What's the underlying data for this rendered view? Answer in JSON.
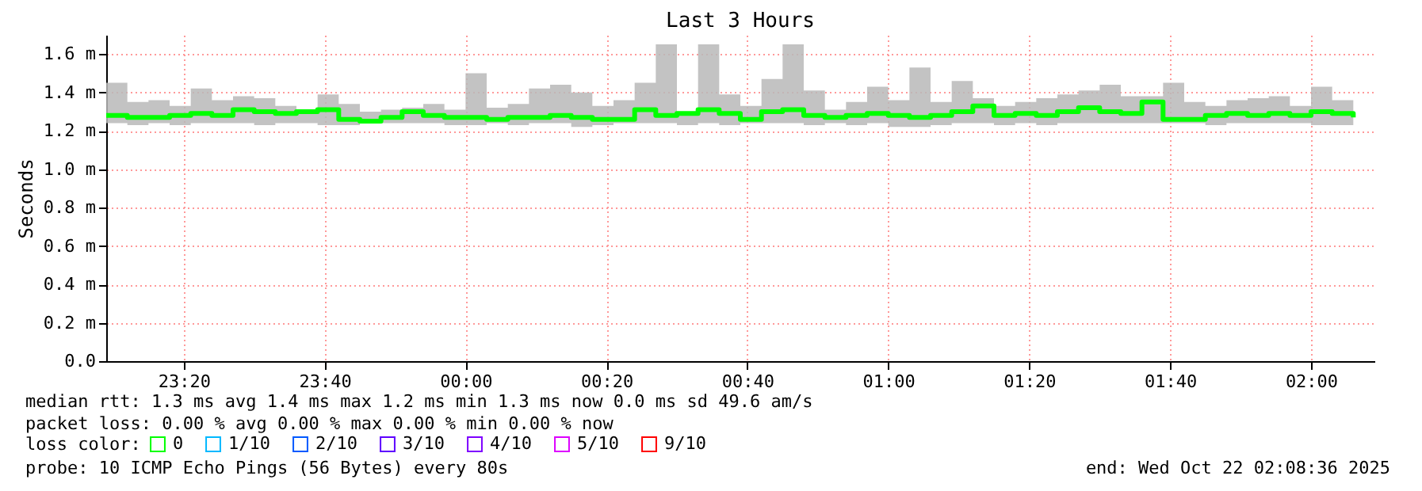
{
  "chart_data": {
    "type": "step",
    "title": "Last 3 Hours",
    "ylabel": "Seconds",
    "legend_title": "loss color:",
    "legend": "bottom",
    "grid": true,
    "xlim": [
      "2025-10-21T23:09",
      "2025-10-22T02:09"
    ],
    "xticks": [
      {
        "value": "2025-10-21T23:20",
        "label": "23:20"
      },
      {
        "value": "2025-10-21T23:40",
        "label": "23:40"
      },
      {
        "value": "2025-10-22T00:00",
        "label": "00:00"
      },
      {
        "value": "2025-10-22T00:20",
        "label": "00:20"
      },
      {
        "value": "2025-10-22T00:40",
        "label": "00:40"
      },
      {
        "value": "2025-10-22T01:00",
        "label": "01:00"
      },
      {
        "value": "2025-10-22T01:20",
        "label": "01:20"
      },
      {
        "value": "2025-10-22T01:40",
        "label": "01:40"
      },
      {
        "value": "2025-10-22T02:00",
        "label": "02:00"
      }
    ],
    "ylim": [
      0,
      1.7
    ],
    "yticks": [
      {
        "value": 0,
        "label": "0.0"
      },
      {
        "value": 0.2,
        "label": "0.2 m"
      },
      {
        "value": 0.4,
        "label": "0.4 m"
      },
      {
        "value": 0.6,
        "label": "0.6 m"
      },
      {
        "value": 0.8,
        "label": "0.8 m"
      },
      {
        "value": 1.0,
        "label": "1.0 m"
      },
      {
        "value": 1.2,
        "label": "1.2 m"
      },
      {
        "value": 1.4,
        "label": "1.4 m"
      },
      {
        "value": 1.6,
        "label": "1.6 m"
      }
    ],
    "x": [
      "2025-10-21T23:09",
      "2025-10-21T23:12",
      "2025-10-21T23:15",
      "2025-10-21T23:18",
      "2025-10-21T23:21",
      "2025-10-21T23:24",
      "2025-10-21T23:27",
      "2025-10-21T23:30",
      "2025-10-21T23:33",
      "2025-10-21T23:36",
      "2025-10-21T23:39",
      "2025-10-21T23:42",
      "2025-10-21T23:45",
      "2025-10-21T23:48",
      "2025-10-21T23:51",
      "2025-10-21T23:54",
      "2025-10-21T23:57",
      "2025-10-22T00:00",
      "2025-10-22T00:03",
      "2025-10-22T00:06",
      "2025-10-22T00:09",
      "2025-10-22T00:12",
      "2025-10-22T00:15",
      "2025-10-22T00:18",
      "2025-10-22T00:21",
      "2025-10-22T00:24",
      "2025-10-22T00:27",
      "2025-10-22T00:30",
      "2025-10-22T00:33",
      "2025-10-22T00:36",
      "2025-10-22T00:39",
      "2025-10-22T00:42",
      "2025-10-22T00:45",
      "2025-10-22T00:48",
      "2025-10-22T00:51",
      "2025-10-22T00:54",
      "2025-10-22T00:57",
      "2025-10-22T01:00",
      "2025-10-22T01:03",
      "2025-10-22T01:06",
      "2025-10-22T01:09",
      "2025-10-22T01:12",
      "2025-10-22T01:15",
      "2025-10-22T01:18",
      "2025-10-22T01:21",
      "2025-10-22T01:24",
      "2025-10-22T01:27",
      "2025-10-22T01:30",
      "2025-10-22T01:33",
      "2025-10-22T01:36",
      "2025-10-22T01:39",
      "2025-10-22T01:42",
      "2025-10-22T01:45",
      "2025-10-22T01:48",
      "2025-10-22T01:51",
      "2025-10-22T01:54",
      "2025-10-22T01:57",
      "2025-10-22T02:00",
      "2025-10-22T02:03",
      "2025-10-22T02:06"
    ],
    "series": [
      {
        "name": "0",
        "color": "#00ff00",
        "values": [
          1.28,
          1.27,
          1.27,
          1.28,
          1.29,
          1.28,
          1.31,
          1.3,
          1.29,
          1.3,
          1.31,
          1.26,
          1.25,
          1.27,
          1.3,
          1.28,
          1.27,
          1.27,
          1.26,
          1.27,
          1.27,
          1.28,
          1.27,
          1.26,
          1.26,
          1.31,
          1.28,
          1.29,
          1.31,
          1.29,
          1.26,
          1.3,
          1.31,
          1.28,
          1.27,
          1.28,
          1.29,
          1.28,
          1.27,
          1.28,
          1.3,
          1.33,
          1.28,
          1.29,
          1.28,
          1.3,
          1.32,
          1.3,
          1.29,
          1.35,
          1.26,
          1.26,
          1.28,
          1.29,
          1.28,
          1.29,
          1.28,
          1.3,
          1.29,
          1.27
        ],
        "lower": [
          1.24,
          1.23,
          1.24,
          1.23,
          1.24,
          1.24,
          1.24,
          1.23,
          1.24,
          1.24,
          1.23,
          1.23,
          1.24,
          1.24,
          1.24,
          1.24,
          1.23,
          1.23,
          1.24,
          1.23,
          1.24,
          1.24,
          1.22,
          1.23,
          1.24,
          1.24,
          1.24,
          1.23,
          1.24,
          1.23,
          1.24,
          1.24,
          1.24,
          1.23,
          1.24,
          1.23,
          1.24,
          1.22,
          1.22,
          1.23,
          1.24,
          1.24,
          1.23,
          1.24,
          1.23,
          1.24,
          1.24,
          1.24,
          1.24,
          1.24,
          1.24,
          1.24,
          1.23,
          1.24,
          1.24,
          1.24,
          1.24,
          1.23,
          1.23,
          1.24
        ],
        "upper": [
          1.45,
          1.35,
          1.36,
          1.33,
          1.42,
          1.36,
          1.38,
          1.37,
          1.33,
          1.31,
          1.39,
          1.34,
          1.3,
          1.31,
          1.32,
          1.34,
          1.31,
          1.5,
          1.32,
          1.34,
          1.42,
          1.44,
          1.4,
          1.33,
          1.36,
          1.45,
          1.65,
          1.3,
          1.65,
          1.39,
          1.33,
          1.47,
          1.65,
          1.41,
          1.31,
          1.35,
          1.43,
          1.36,
          1.53,
          1.35,
          1.46,
          1.37,
          1.33,
          1.35,
          1.37,
          1.39,
          1.41,
          1.44,
          1.38,
          1.38,
          1.45,
          1.35,
          1.33,
          1.36,
          1.37,
          1.38,
          1.33,
          1.43,
          1.36,
          1.31
        ]
      },
      {
        "name": "1/10",
        "color": "#00b8ff",
        "values": [
          null,
          null,
          null,
          null,
          null,
          null,
          null,
          null,
          null,
          null,
          null,
          null,
          null,
          null,
          null,
          null,
          null,
          null,
          null,
          null,
          null,
          null,
          null,
          null,
          null,
          null,
          null,
          null,
          null,
          null,
          null,
          null,
          null,
          null,
          null,
          null,
          null,
          null,
          null,
          null,
          null,
          null,
          null,
          null,
          null,
          null,
          null,
          null,
          null,
          null,
          null,
          null,
          null,
          null,
          null,
          null,
          null,
          null,
          null,
          null
        ]
      },
      {
        "name": "2/10",
        "color": "#0059ff",
        "values": [
          null,
          null,
          null,
          null,
          null,
          null,
          null,
          null,
          null,
          null,
          null,
          null,
          null,
          null,
          null,
          null,
          null,
          null,
          null,
          null,
          null,
          null,
          null,
          null,
          null,
          null,
          null,
          null,
          null,
          null,
          null,
          null,
          null,
          null,
          null,
          null,
          null,
          null,
          null,
          null,
          null,
          null,
          null,
          null,
          null,
          null,
          null,
          null,
          null,
          null,
          null,
          null,
          null,
          null,
          null,
          null,
          null,
          null,
          null,
          null
        ]
      },
      {
        "name": "3/10",
        "color": "#5e00ff",
        "values": [
          null,
          null,
          null,
          null,
          null,
          null,
          null,
          null,
          null,
          null,
          null,
          null,
          null,
          null,
          null,
          null,
          null,
          null,
          null,
          null,
          null,
          null,
          null,
          null,
          null,
          null,
          null,
          null,
          null,
          null,
          null,
          null,
          null,
          null,
          null,
          null,
          null,
          null,
          null,
          null,
          null,
          null,
          null,
          null,
          null,
          null,
          null,
          null,
          null,
          null,
          null,
          null,
          null,
          null,
          null,
          null,
          null,
          null,
          null,
          null
        ]
      },
      {
        "name": "4/10",
        "color": "#7e00ff",
        "values": [
          null,
          null,
          null,
          null,
          null,
          null,
          null,
          null,
          null,
          null,
          null,
          null,
          null,
          null,
          null,
          null,
          null,
          null,
          null,
          null,
          null,
          null,
          null,
          null,
          null,
          null,
          null,
          null,
          null,
          null,
          null,
          null,
          null,
          null,
          null,
          null,
          null,
          null,
          null,
          null,
          null,
          null,
          null,
          null,
          null,
          null,
          null,
          null,
          null,
          null,
          null,
          null,
          null,
          null,
          null,
          null,
          null,
          null,
          null,
          null
        ]
      },
      {
        "name": "5/10",
        "color": "#dd00ff",
        "values": [
          null,
          null,
          null,
          null,
          null,
          null,
          null,
          null,
          null,
          null,
          null,
          null,
          null,
          null,
          null,
          null,
          null,
          null,
          null,
          null,
          null,
          null,
          null,
          null,
          null,
          null,
          null,
          null,
          null,
          null,
          null,
          null,
          null,
          null,
          null,
          null,
          null,
          null,
          null,
          null,
          null,
          null,
          null,
          null,
          null,
          null,
          null,
          null,
          null,
          null,
          null,
          null,
          null,
          null,
          null,
          null,
          null,
          null,
          null,
          null
        ]
      },
      {
        "name": "9/10",
        "color": "#ff0000",
        "values": [
          null,
          null,
          null,
          null,
          null,
          null,
          null,
          null,
          null,
          null,
          null,
          null,
          null,
          null,
          null,
          null,
          null,
          null,
          null,
          null,
          null,
          null,
          null,
          null,
          null,
          null,
          null,
          null,
          null,
          null,
          null,
          null,
          null,
          null,
          null,
          null,
          null,
          null,
          null,
          null,
          null,
          null,
          null,
          null,
          null,
          null,
          null,
          null,
          null,
          null,
          null,
          null,
          null,
          null,
          null,
          null,
          null,
          null,
          null,
          null
        ]
      }
    ],
    "annotations": [
      "median rtt:  1.3 ms avg  1.4 ms max  1.2 ms min  1.3 ms now  0.0 ms sd  49.6   am/s",
      "packet loss: 0.00 % avg  0.00 % max  0.00 % min  0.00 % now",
      "probe:       10 ICMP Echo Pings (56 Bytes) every 80s",
      "end: Wed Oct 22 02:08:36 2025"
    ]
  }
}
